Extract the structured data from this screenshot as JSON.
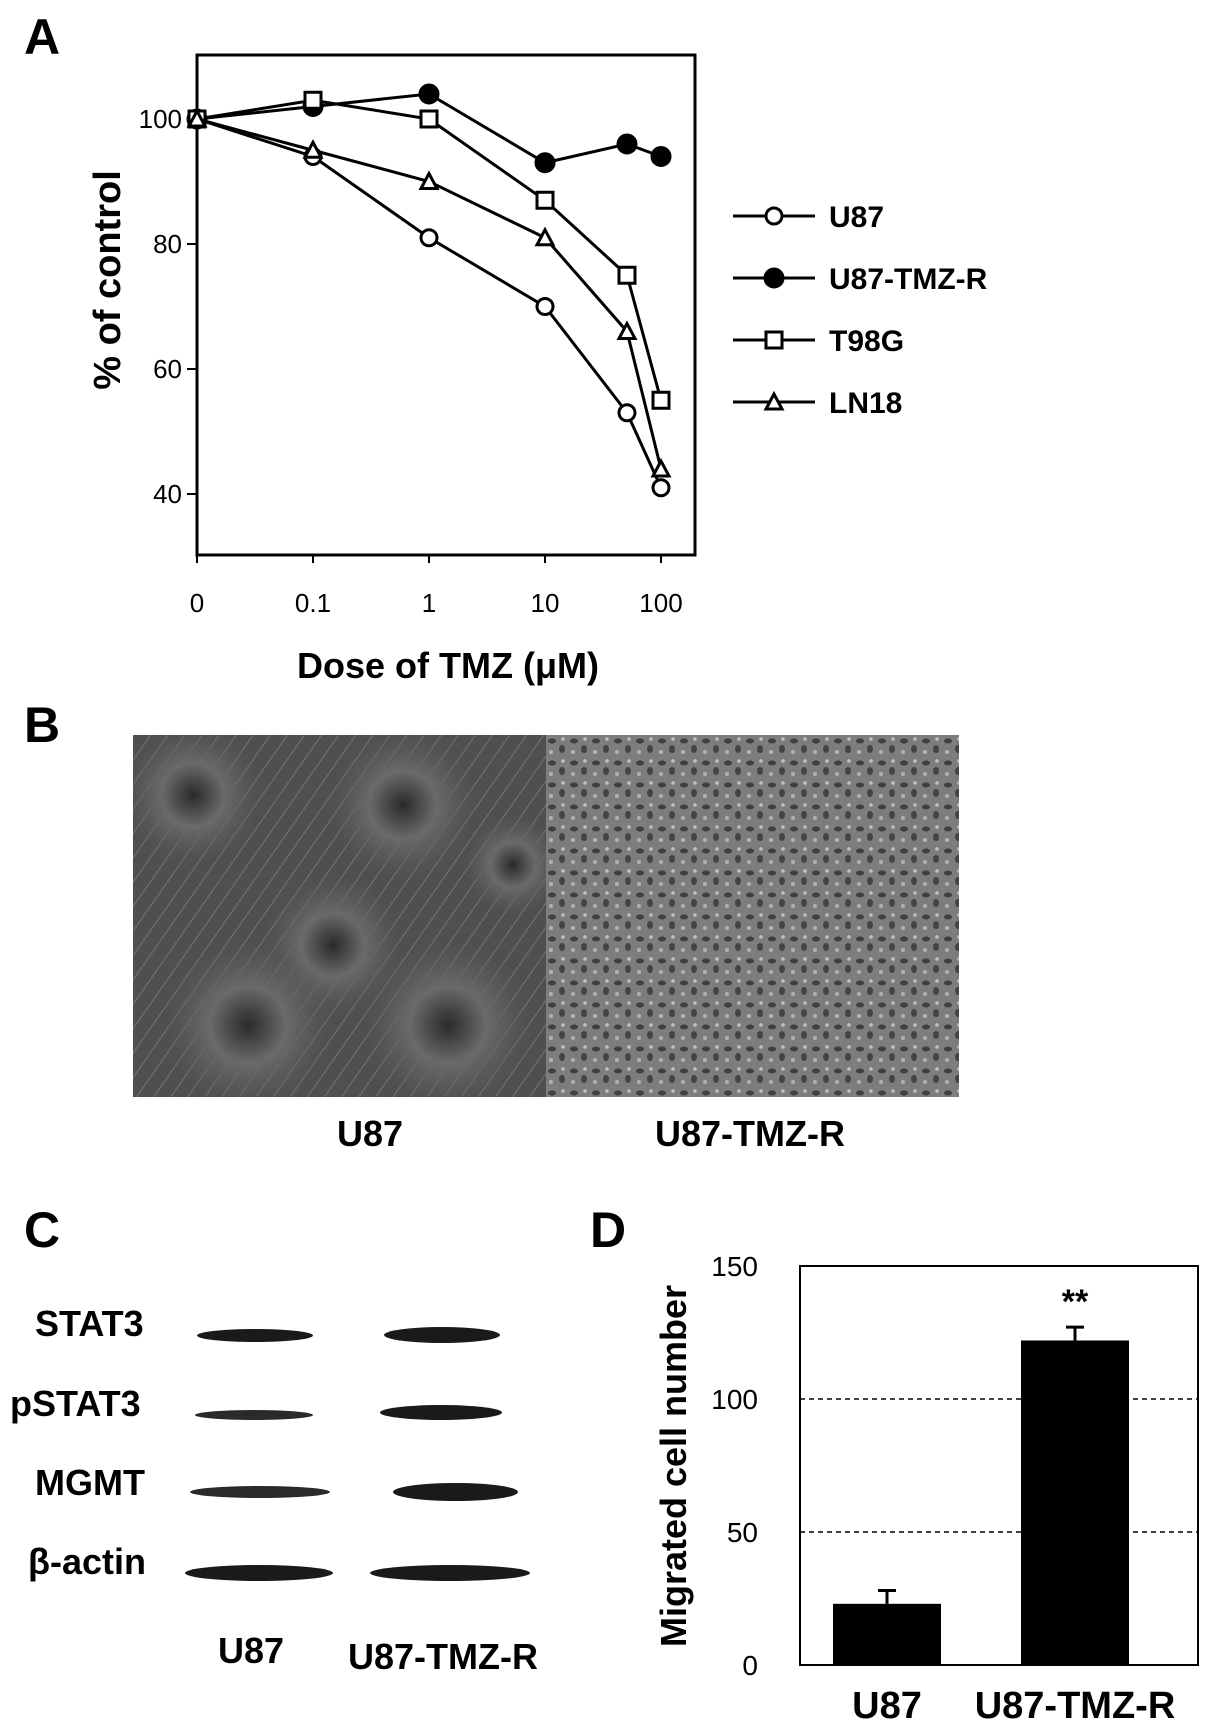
{
  "panels": {
    "a": "A",
    "b": "B",
    "c": "C",
    "d": "D"
  },
  "chart_data": [
    {
      "panel": "A",
      "type": "line",
      "xlabel": "Dose of TMZ (μM)",
      "ylabel": "% of control",
      "x": [
        "0",
        "0.1",
        "1",
        "10",
        "50",
        "100"
      ],
      "x_tick_labels": [
        "0",
        "0.1",
        "1",
        "10",
        "100"
      ],
      "y_ticks": [
        40,
        60,
        80,
        100
      ],
      "ylim": [
        30,
        110
      ],
      "grid": false,
      "legend_position": "right",
      "series": [
        {
          "name": "U87",
          "marker": "open-circle",
          "values": [
            100,
            94,
            81,
            70,
            53,
            41
          ]
        },
        {
          "name": "U87-TMZ-R",
          "marker": "filled-circle",
          "values": [
            100,
            102,
            104,
            93,
            96,
            94
          ]
        },
        {
          "name": "T98G",
          "marker": "open-square",
          "values": [
            100,
            103,
            100,
            87,
            75,
            55
          ]
        },
        {
          "name": "LN18",
          "marker": "open-triangle",
          "values": [
            100,
            95,
            90,
            81,
            66,
            44
          ]
        }
      ]
    },
    {
      "panel": "D",
      "type": "bar",
      "categories": [
        "U87",
        "U87-TMZ-R"
      ],
      "values": [
        23,
        122
      ],
      "errors": [
        5,
        5
      ],
      "ylabel": "Migrated cell  number",
      "y_ticks": [
        0,
        50,
        100,
        150
      ],
      "ylim": [
        0,
        150
      ],
      "gridlines": [
        50,
        100
      ],
      "annotations": [
        {
          "category": "U87-TMZ-R",
          "text": "**"
        }
      ]
    }
  ],
  "micrographs": {
    "left_label": "U87",
    "right_label": "U87-TMZ-R"
  },
  "western_blot": {
    "rows": [
      "STAT3",
      "pSTAT3",
      "MGMT",
      "β-actin"
    ],
    "lanes": [
      "U87",
      "U87-TMZ-R"
    ]
  },
  "colors": {
    "ink": "#000000",
    "micrograph_bg": "#5a5a5a",
    "bar": "#000000"
  }
}
